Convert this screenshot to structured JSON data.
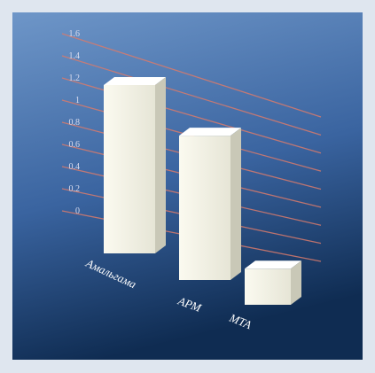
{
  "chart_data": {
    "type": "bar",
    "categories": [
      "Амальгама",
      "АРМ",
      "МТА"
    ],
    "values": [
      1.4,
      1.2,
      0.3
    ],
    "ylim": [
      0,
      1.6
    ],
    "y_ticks": [
      0,
      0.2,
      0.4,
      0.6,
      0.8,
      1,
      1.2,
      1.4,
      1.6
    ],
    "y_tick_labels": [
      "0",
      "0.2",
      "0.4",
      "0.6",
      "0.8",
      "1",
      "1.2",
      "1.4",
      "1.6"
    ],
    "grid": true,
    "legend": "none",
    "style": "3d",
    "colors": {
      "bar_front": "#f3f2e6",
      "bar_side": "#c9c8b7",
      "bar_top": "#ffffff",
      "gridline": "#d77a6c",
      "background_top": "#6e96c8",
      "background_bottom": "#0f2c52"
    }
  }
}
